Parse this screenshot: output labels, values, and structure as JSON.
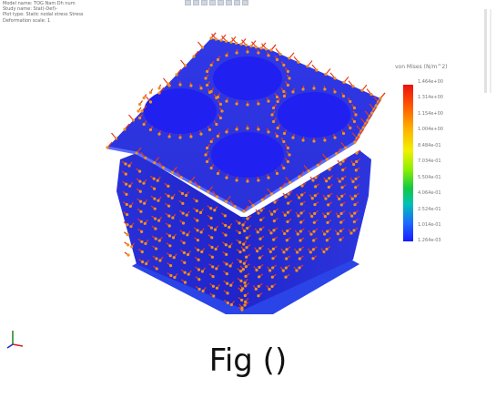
{
  "info": {
    "lines": [
      "Model name: TOG Nam Dh num",
      "Study name: Stat(-Def)-",
      "Plot type: Static nodal stress Stress",
      "Deformation scale: 1"
    ]
  },
  "toolbar": {
    "icons": [
      "view-icon",
      "zoom-icon",
      "pan-icon",
      "rotate-icon",
      "section-icon",
      "display-icon",
      "settings-icon",
      "more-icon"
    ]
  },
  "legend": {
    "title": "von Mises (N/m^2)",
    "labels": [
      "1.464e+00",
      "1.314e+00",
      "1.154e+00",
      "1.004e+00",
      "8.484e-01",
      "7.034e-01",
      "5.504e-01",
      "4.064e-01",
      "2.524e-01",
      "1.014e-01",
      "1.264e-03"
    ],
    "colors": [
      "#ee1010",
      "#ff5a00",
      "#ffb000",
      "#f2f000",
      "#8ef000",
      "#13c943",
      "#00c2b3",
      "#1a6cff",
      "#1a1aff"
    ]
  },
  "model": {
    "description_colors": {
      "body": "#1a1aff",
      "arrows": "#e83a1a",
      "nodes": "#f09020"
    }
  },
  "caption": "Fig ()"
}
